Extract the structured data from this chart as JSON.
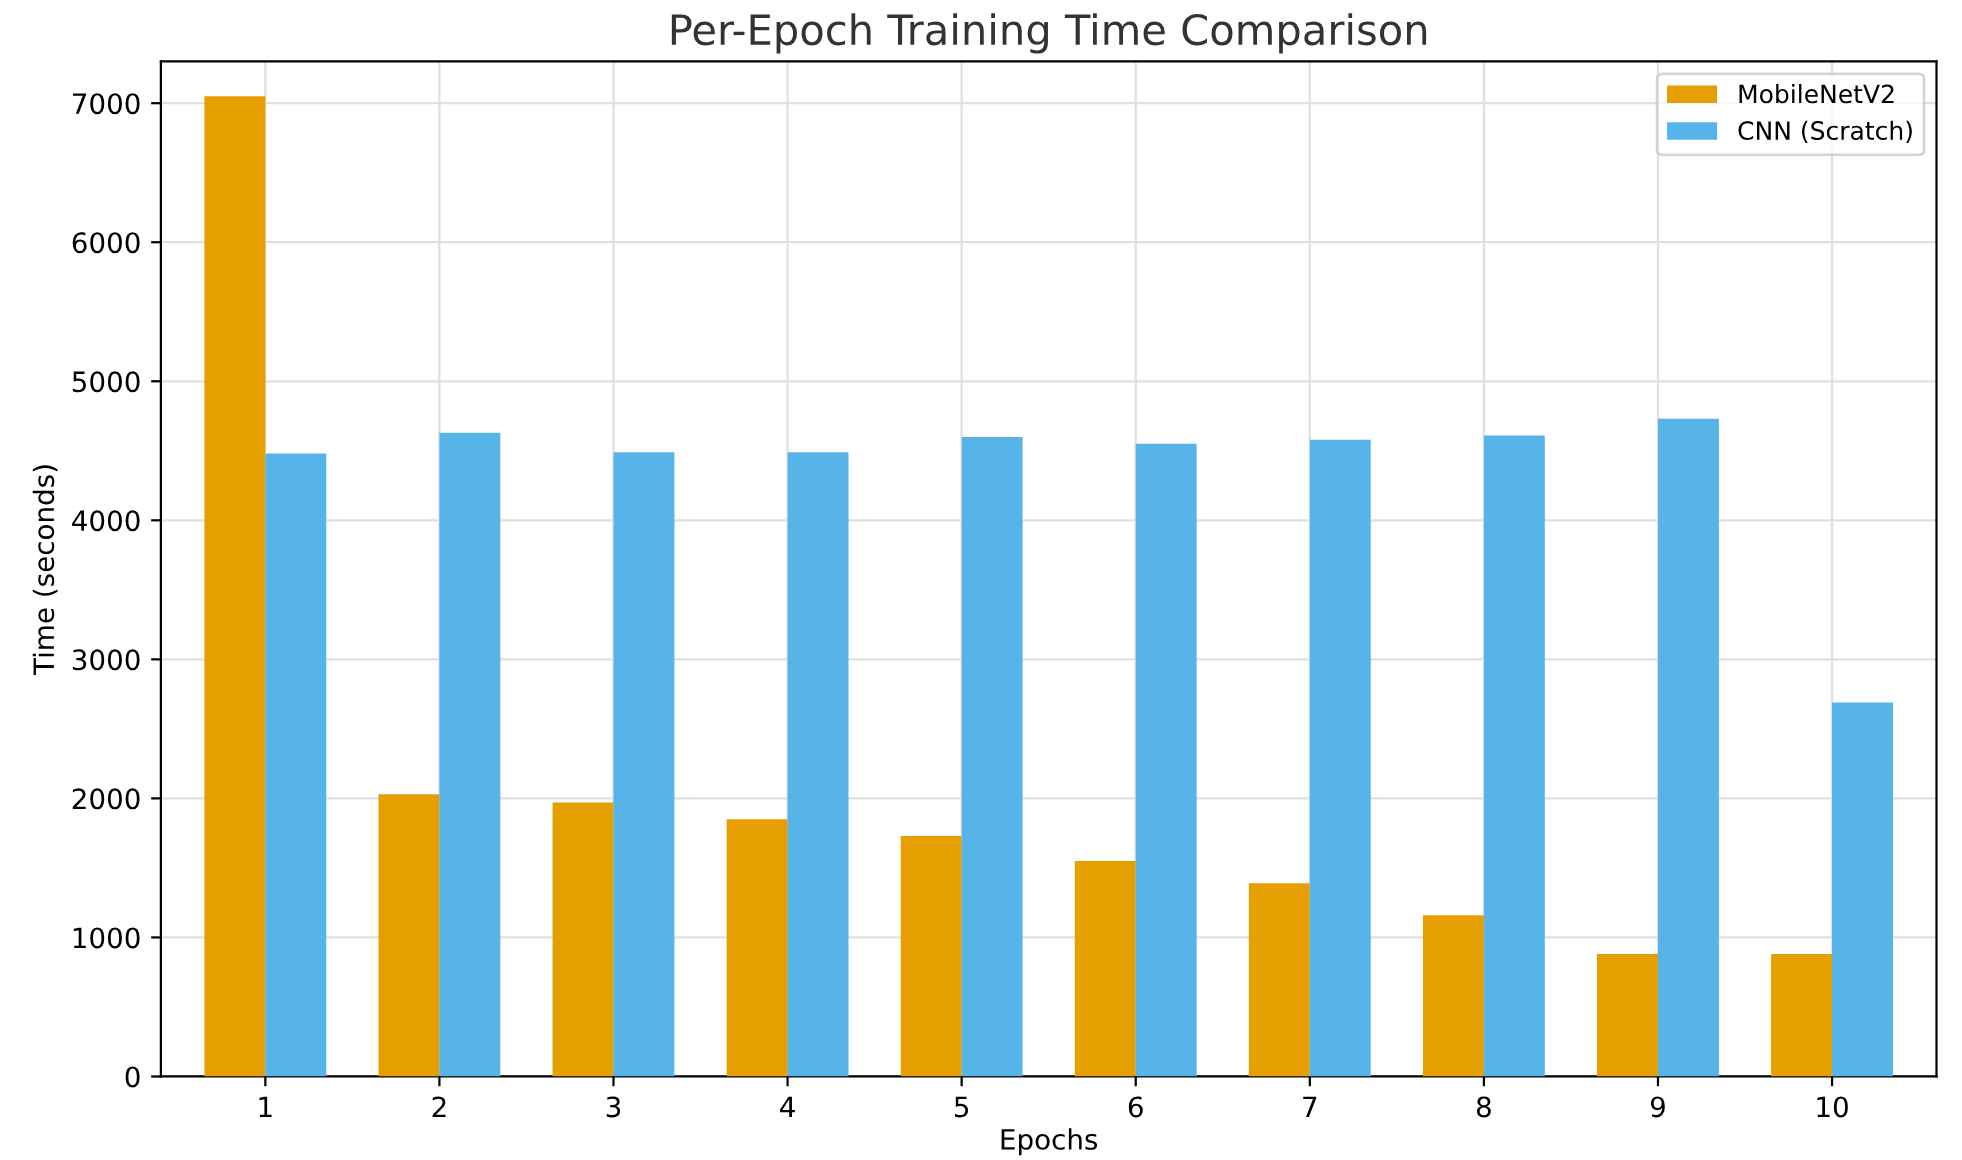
{
  "chart_data": {
    "type": "bar",
    "title": "Per-Epoch Training Time Comparison",
    "xlabel": "Epochs",
    "ylabel": "Time (seconds)",
    "categories": [
      "1",
      "2",
      "3",
      "4",
      "5",
      "6",
      "7",
      "8",
      "9",
      "10"
    ],
    "series": [
      {
        "name": "MobileNetV2",
        "color": "#e69f00",
        "values": [
          7050,
          2030,
          1970,
          1850,
          1730,
          1550,
          1390,
          1160,
          880,
          880
        ]
      },
      {
        "name": "CNN (Scratch)",
        "color": "#56b4e9",
        "values": [
          4480,
          4630,
          4490,
          4490,
          4600,
          4550,
          4580,
          4610,
          4730,
          2690
        ]
      }
    ],
    "ylim": [
      0,
      7300
    ],
    "yticks": [
      0,
      1000,
      2000,
      3000,
      4000,
      5000,
      6000,
      7000
    ],
    "grid": true,
    "legend": "top right"
  }
}
